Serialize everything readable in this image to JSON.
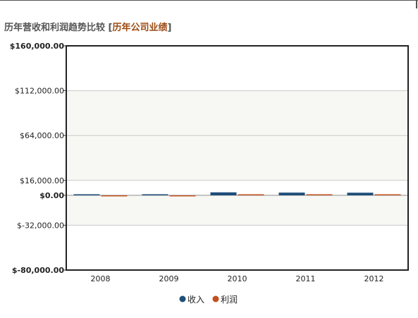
{
  "header": {
    "title": "历年营收和利润趋势比较",
    "bracket_open": "[",
    "link_label": "历年公司业绩",
    "bracket_close": "]"
  },
  "chart_data": {
    "type": "bar",
    "categories": [
      "2008",
      "2009",
      "2010",
      "2011",
      "2012"
    ],
    "series": [
      {
        "name": "收入",
        "color": "#1f4e79",
        "values": [
          250,
          700,
          3200,
          2900,
          2800
        ]
      },
      {
        "name": "利润",
        "color": "#c0501f",
        "values": [
          -300,
          -800,
          150,
          100,
          100
        ]
      }
    ],
    "ylim": [
      -80000,
      160000
    ],
    "yticks": [
      {
        "value": 160000,
        "label": "$160,000.00",
        "bold": true
      },
      {
        "value": 112000,
        "label": "$112,000.00",
        "bold": false
      },
      {
        "value": 64000,
        "label": "$64,000.00",
        "bold": false
      },
      {
        "value": 16000,
        "label": "$16,000.00",
        "bold": false
      },
      {
        "value": 0,
        "label": "$0.00",
        "bold": true
      },
      {
        "value": -32000,
        "label": "$-32,000.00",
        "bold": false
      },
      {
        "value": -80000,
        "label": "$-80,000.00",
        "bold": true
      }
    ],
    "shaded_bands": [
      [
        16000,
        112000
      ],
      [
        -32000,
        0
      ]
    ],
    "grid": true,
    "legend_position": "bottom-center"
  }
}
